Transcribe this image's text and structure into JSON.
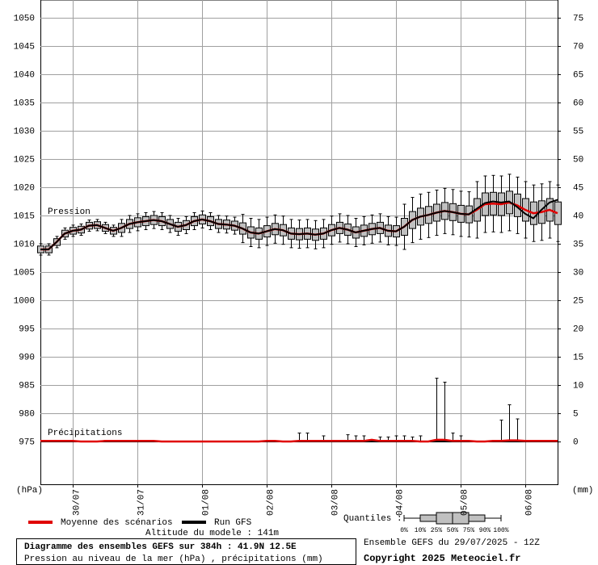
{
  "chart_data": {
    "type": "boxplot",
    "pressure_label": "Pression",
    "precip_label": "Précipitations",
    "y_unit": "(hPa)",
    "y2_unit": "(mm)",
    "ylim": [
      967.43,
      1053.14
    ],
    "yticks": [
      975,
      980,
      985,
      990,
      995,
      1000,
      1005,
      1010,
      1015,
      1020,
      1025,
      1030,
      1035,
      1040,
      1045,
      1050
    ],
    "y2lim": [
      -7.57,
      78.14
    ],
    "y2ticks": [
      0,
      5,
      10,
      15,
      20,
      25,
      30,
      35,
      40,
      45,
      50,
      55,
      60,
      65,
      70,
      75
    ],
    "grid": true,
    "categories": [
      null,
      null,
      null,
      null,
      "30/07",
      null,
      null,
      null,
      null,
      null,
      null,
      null,
      "31/07",
      null,
      null,
      null,
      null,
      null,
      null,
      null,
      "01/08",
      null,
      null,
      null,
      null,
      null,
      null,
      null,
      "02/08",
      null,
      null,
      null,
      null,
      null,
      null,
      null,
      "03/08",
      null,
      null,
      null,
      null,
      null,
      null,
      null,
      "04/08",
      null,
      null,
      null,
      null,
      null,
      null,
      null,
      "05/08",
      null,
      null,
      null,
      null,
      null,
      null,
      null,
      "06/08",
      null,
      null,
      null,
      null
    ],
    "boxes": {
      "color": "#c0c0c0",
      "lo": [
        1008,
        1008,
        1009.3,
        1010.8,
        1011.3,
        1011.5,
        1012.2,
        1012.3,
        1011.8,
        1011.3,
        1011.3,
        1012,
        1012.3,
        1012.5,
        1012.7,
        1012.5,
        1012,
        1011.5,
        1011.8,
        1012.5,
        1012.8,
        1012.5,
        1012,
        1011.9,
        1011.7,
        1010.2,
        1009.5,
        1009.3,
        1009.7,
        1010.1,
        1009.9,
        1009.3,
        1009.2,
        1009.3,
        1009.1,
        1009.3,
        1009.9,
        1010.3,
        1010,
        1009.5,
        1009.8,
        1010.1,
        1010.3,
        1009.8,
        1009.7,
        1009,
        1010.2,
        1010.8,
        1011.1,
        1011.5,
        1011.8,
        1011.6,
        1011.3,
        1011.2,
        1011,
        1012,
        1012.1,
        1012,
        1012.3,
        1011.8,
        1011,
        1010.4,
        1010.6,
        1011,
        1010.4
      ],
      "q1": [
        1008.4,
        1008.4,
        1009.7,
        1011.2,
        1011.7,
        1011.9,
        1012.6,
        1012.7,
        1012.2,
        1011.7,
        1012,
        1012.7,
        1013,
        1013.2,
        1013.4,
        1013.2,
        1012.7,
        1012.2,
        1012.5,
        1013.2,
        1013.5,
        1013.2,
        1012.7,
        1012.6,
        1012.4,
        1011.7,
        1011,
        1010.8,
        1011.2,
        1011.6,
        1011.4,
        1010.8,
        1010.7,
        1010.8,
        1010.6,
        1010.8,
        1011.4,
        1011.8,
        1011.5,
        1011,
        1011.3,
        1011.6,
        1011.8,
        1011.3,
        1011.2,
        1011.5,
        1012.7,
        1013.3,
        1013.6,
        1014,
        1014.3,
        1014.1,
        1013.8,
        1013.7,
        1014,
        1015,
        1015.1,
        1015,
        1015.3,
        1014.8,
        1014,
        1013.4,
        1013.6,
        1014,
        1013.4
      ],
      "q3": [
        1009.6,
        1009.6,
        1010.9,
        1012.4,
        1012.9,
        1013.1,
        1013.8,
        1013.9,
        1013.4,
        1012.9,
        1013.6,
        1014.3,
        1014.6,
        1014.8,
        1015,
        1014.8,
        1014.3,
        1013.8,
        1014.1,
        1014.8,
        1015.1,
        1014.8,
        1014.3,
        1014.2,
        1014,
        1013.7,
        1013,
        1012.8,
        1013.2,
        1013.6,
        1013.4,
        1012.8,
        1012.7,
        1012.8,
        1012.6,
        1012.8,
        1013.4,
        1013.8,
        1013.5,
        1013,
        1013.3,
        1013.6,
        1013.8,
        1013.3,
        1013.2,
        1014.5,
        1015.7,
        1016.3,
        1016.6,
        1017,
        1017.3,
        1017.1,
        1016.8,
        1016.7,
        1018,
        1019,
        1019.1,
        1019,
        1019.3,
        1018.8,
        1018,
        1017.4,
        1017.6,
        1018,
        1017.4
      ],
      "hi": [
        1010,
        1010,
        1011.3,
        1012.8,
        1013.3,
        1013.5,
        1014.2,
        1014.3,
        1013.8,
        1013.3,
        1014.3,
        1015,
        1015.3,
        1015.5,
        1015.7,
        1015.5,
        1015,
        1014.5,
        1014.8,
        1015.5,
        1015.8,
        1015.5,
        1015,
        1014.9,
        1014.7,
        1015.2,
        1014.5,
        1014.3,
        1014.7,
        1015.1,
        1014.9,
        1014.3,
        1014.2,
        1014.3,
        1014.1,
        1014.3,
        1014.9,
        1015.3,
        1015,
        1014.5,
        1014.8,
        1015.1,
        1015.3,
        1014.8,
        1014.7,
        1017,
        1018.2,
        1018.8,
        1019.1,
        1019.5,
        1019.8,
        1019.6,
        1019.3,
        1019.2,
        1021,
        1022,
        1022.1,
        1022,
        1022.3,
        1021.8,
        1021,
        1020.4,
        1020.6,
        1021,
        1020.4
      ]
    },
    "series": [
      {
        "name": "Moyenne des scénarios",
        "color": "#e00000",
        "values": [
          1009,
          1009,
          1010.3,
          1011.8,
          1012.3,
          1012.5,
          1013.2,
          1013.3,
          1012.8,
          1012.3,
          1012.8,
          1013.5,
          1013.8,
          1014,
          1014.2,
          1014,
          1013.5,
          1013,
          1013.3,
          1014,
          1014.3,
          1014,
          1013.5,
          1013.4,
          1013.2,
          1012.7,
          1012,
          1011.8,
          1012.2,
          1012.6,
          1012.4,
          1011.8,
          1011.7,
          1011.8,
          1011.6,
          1011.8,
          1012.4,
          1012.8,
          1012.5,
          1012,
          1012.3,
          1012.6,
          1012.8,
          1012.3,
          1012.2,
          1013,
          1014.2,
          1014.8,
          1015.1,
          1015.5,
          1015.8,
          1015.6,
          1015.3,
          1015.2,
          1016,
          1017,
          1017.1,
          1017,
          1017.3,
          1016.8,
          1016,
          1015.4,
          1015.6,
          1016,
          1015.4
        ]
      },
      {
        "name": "Run GFS",
        "color": "#000000",
        "values": [
          1009,
          1009,
          1010.3,
          1011.8,
          1012.3,
          1012.5,
          1013.2,
          1013.3,
          1012.8,
          1012.3,
          1012.8,
          1013.5,
          1013.8,
          1014,
          1014.2,
          1014,
          1013.5,
          1013,
          1013.3,
          1014,
          1014.3,
          1014,
          1013.5,
          1013.4,
          1013.2,
          1012.7,
          1012,
          1011.8,
          1012.2,
          1012.6,
          1012.4,
          1011.8,
          1011.7,
          1011.8,
          1011.6,
          1011.8,
          1012.4,
          1012.8,
          1012.5,
          1012,
          1012.3,
          1012.6,
          1012.8,
          1012.3,
          1012.2,
          1013,
          1014.2,
          1014.8,
          1015.1,
          1015.5,
          1015.8,
          1015.6,
          1015.3,
          1015.2,
          1016.2,
          1017.2,
          1017.5,
          1017.3,
          1017.5,
          1016.5,
          1015.3,
          1014.5,
          1016,
          1017.3,
          1017.8
        ]
      }
    ],
    "precip": {
      "color": "#e00000",
      "mean": [
        0.1,
        0.1,
        0.1,
        0.1,
        0.1,
        0,
        0,
        0,
        0.1,
        0.1,
        0.1,
        0.1,
        0.1,
        0.1,
        0.1,
        0,
        0,
        0,
        0,
        0,
        0,
        0,
        0,
        0,
        0,
        0,
        0,
        0,
        0.1,
        0.1,
        0,
        0,
        0.1,
        0.1,
        0.1,
        0.1,
        0.1,
        0.1,
        0.1,
        0.1,
        0.1,
        0.3,
        0.1,
        0.1,
        0.1,
        0.1,
        0.1,
        0,
        0,
        0.3,
        0.3,
        0.1,
        0.1,
        0.1,
        0,
        0,
        0.1,
        0.1,
        0.2,
        0.2,
        0.1,
        0.1,
        0.1,
        0.1,
        0.1
      ],
      "max": [
        0,
        0,
        0,
        0,
        0,
        0,
        0,
        0,
        0,
        0,
        0,
        0,
        0,
        0,
        0,
        0,
        0,
        0,
        0,
        0,
        0,
        0,
        0,
        0,
        0,
        0,
        0,
        0,
        0,
        0,
        0,
        0,
        1.5,
        1.5,
        0,
        1,
        0,
        0,
        1.2,
        1,
        1,
        0,
        0.8,
        0.8,
        1,
        1,
        0.8,
        1,
        0,
        11.2,
        10.5,
        1.5,
        1,
        0,
        0,
        0,
        0,
        3.8,
        6.5,
        4,
        0,
        0,
        0,
        0,
        0
      ]
    },
    "altitude": "Altitude du modele : 141m",
    "quantiles_label": "Quantiles :",
    "quantiles": [
      "0%",
      "10%",
      "25%",
      "50%",
      "75%",
      "90%",
      "100%"
    ],
    "title": "Diagramme des ensembles GEFS sur 384h : 41.9N 12.5E",
    "subtitle": "Pression au niveau de la mer (hPa) , précipitations (mm)",
    "run": "Ensemble GEFS du 29/07/2025 - 12Z",
    "copyright": "Copyright 2025 Meteociel.fr"
  }
}
